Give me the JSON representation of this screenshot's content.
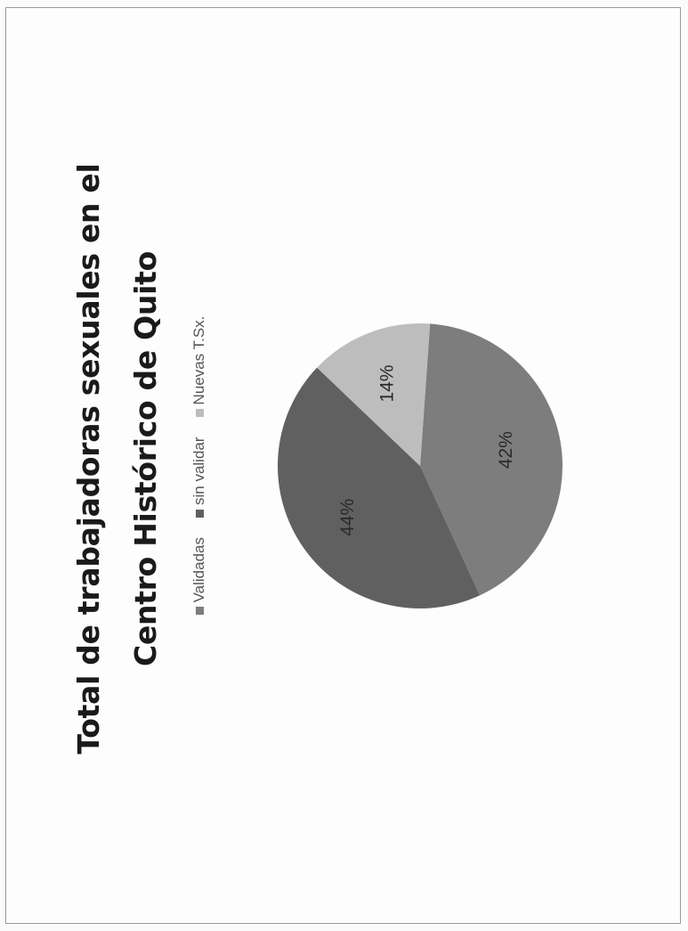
{
  "chart_data": {
    "type": "pie",
    "title_lines": [
      "Total de trabajadoras sexuales en el",
      "Centro Histórico de Quito"
    ],
    "categories": [
      "Validadas",
      "sin validar",
      "Nuevas T.Sx."
    ],
    "values": [
      42,
      44,
      14
    ],
    "data_labels": [
      "42%",
      "44%",
      "14%"
    ],
    "colors": [
      "#7d7d7d",
      "#606060",
      "#bdbdbd"
    ],
    "legend_position": "top"
  }
}
